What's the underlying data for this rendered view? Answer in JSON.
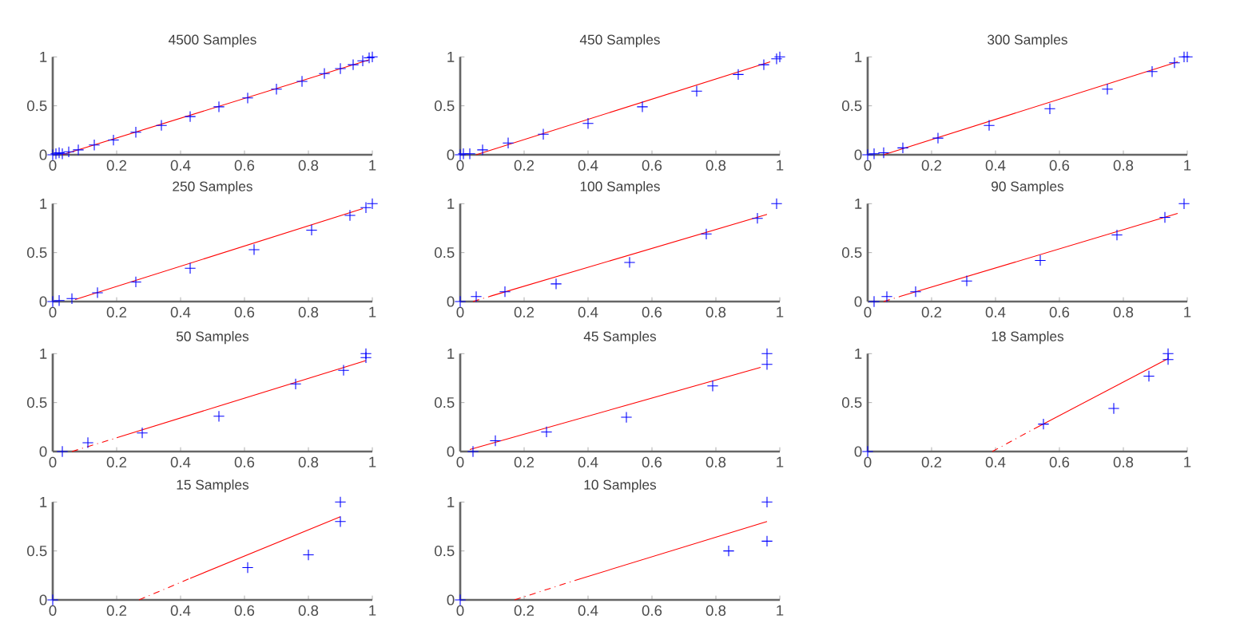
{
  "chart_data": [
    {
      "type": "scatter",
      "title": "4500 Samples",
      "xlim": [
        0,
        1
      ],
      "ylim": [
        0,
        1
      ],
      "xticks": [
        0,
        0.2,
        0.4,
        0.6,
        0.8,
        1
      ],
      "yticks": [
        0,
        0.5,
        1
      ],
      "series": [
        {
          "type": "scatter",
          "marker": "cross",
          "color": "#0000ff",
          "x": [
            0,
            0.01,
            0.02,
            0.03,
            0.05,
            0.08,
            0.13,
            0.19,
            0.26,
            0.34,
            0.43,
            0.52,
            0.61,
            0.7,
            0.78,
            0.85,
            0.9,
            0.94,
            0.97,
            0.99,
            1
          ],
          "values": [
            0,
            0.01,
            0.02,
            0.01,
            0.03,
            0.05,
            0.1,
            0.15,
            0.23,
            0.3,
            0.39,
            0.49,
            0.58,
            0.67,
            0.75,
            0.83,
            0.88,
            0.92,
            0.96,
            0.99,
            1
          ]
        },
        {
          "type": "line",
          "line_style": "solid",
          "color": "#ff0000",
          "x": [
            0.03,
            0.99
          ],
          "values": [
            0,
            0.97
          ]
        }
      ]
    },
    {
      "type": "scatter",
      "title": "450 Samples",
      "xlim": [
        0,
        1
      ],
      "ylim": [
        0,
        1
      ],
      "xticks": [
        0,
        0.2,
        0.4,
        0.6,
        0.8,
        1
      ],
      "yticks": [
        0,
        0.5,
        1
      ],
      "series": [
        {
          "type": "scatter",
          "marker": "cross",
          "color": "#0000ff",
          "x": [
            0,
            0.01,
            0.03,
            0.07,
            0.15,
            0.26,
            0.4,
            0.57,
            0.74,
            0.87,
            0.95,
            0.99,
            1
          ],
          "values": [
            0,
            0.01,
            0.01,
            0.05,
            0.12,
            0.21,
            0.32,
            0.49,
            0.65,
            0.82,
            0.92,
            0.98,
            1
          ]
        },
        {
          "type": "line",
          "line_style": "solid",
          "color": "#ff0000",
          "x": [
            0.05,
            0.97
          ],
          "values": [
            0,
            0.95
          ]
        }
      ]
    },
    {
      "type": "scatter",
      "title": "300 Samples",
      "xlim": [
        0,
        1
      ],
      "ylim": [
        0,
        1
      ],
      "xticks": [
        0,
        0.2,
        0.4,
        0.6,
        0.8,
        1
      ],
      "yticks": [
        0,
        0.5,
        1
      ],
      "series": [
        {
          "type": "scatter",
          "marker": "cross",
          "color": "#0000ff",
          "x": [
            0,
            0.02,
            0.05,
            0.11,
            0.22,
            0.38,
            0.57,
            0.75,
            0.89,
            0.96,
            0.99,
            1
          ],
          "values": [
            0,
            0.01,
            0.02,
            0.07,
            0.17,
            0.3,
            0.47,
            0.67,
            0.85,
            0.94,
            1,
            1
          ]
        },
        {
          "type": "line",
          "line_style": "solid",
          "color": "#ff0000",
          "x": [
            0.05,
            0.97
          ],
          "values": [
            0,
            0.95
          ]
        }
      ]
    },
    {
      "type": "scatter",
      "title": "250 Samples",
      "xlim": [
        0,
        1
      ],
      "ylim": [
        0,
        1
      ],
      "xticks": [
        0,
        0.2,
        0.4,
        0.6,
        0.8,
        1
      ],
      "yticks": [
        0,
        0.5,
        1
      ],
      "series": [
        {
          "type": "scatter",
          "marker": "cross",
          "color": "#0000ff",
          "x": [
            0,
            0.02,
            0.06,
            0.14,
            0.26,
            0.43,
            0.63,
            0.81,
            0.93,
            0.98,
            1
          ],
          "values": [
            0,
            0.01,
            0.03,
            0.09,
            0.2,
            0.34,
            0.53,
            0.73,
            0.88,
            0.96,
            1
          ]
        },
        {
          "type": "line",
          "line_style": "solid",
          "color": "#ff0000",
          "x": [
            0.07,
            0.97
          ],
          "values": [
            0.02,
            0.95
          ]
        }
      ]
    },
    {
      "type": "scatter",
      "title": "100 Samples",
      "xlim": [
        0,
        1
      ],
      "ylim": [
        0,
        1
      ],
      "xticks": [
        0,
        0.2,
        0.4,
        0.6,
        0.8,
        1
      ],
      "yticks": [
        0,
        0.5,
        1
      ],
      "series": [
        {
          "type": "scatter",
          "marker": "cross",
          "color": "#0000ff",
          "x": [
            0,
            0.05,
            0.14,
            0.3,
            0.53,
            0.77,
            0.93,
            0.99
          ],
          "values": [
            0,
            0.05,
            0.1,
            0.18,
            0.4,
            0.69,
            0.85,
            1
          ]
        },
        {
          "type": "line",
          "line_style": "dashed",
          "color": "#ff0000",
          "x": [
            0.04,
            0.1
          ],
          "values": [
            0,
            0.06
          ]
        },
        {
          "type": "line",
          "line_style": "solid",
          "color": "#ff0000",
          "x": [
            0.1,
            0.96
          ],
          "values": [
            0.06,
            0.89
          ]
        }
      ]
    },
    {
      "type": "scatter",
      "title": "90 Samples",
      "xlim": [
        0,
        1
      ],
      "ylim": [
        0,
        1
      ],
      "xticks": [
        0,
        0.2,
        0.4,
        0.6,
        0.8,
        1
      ],
      "yticks": [
        0,
        0.5,
        1
      ],
      "series": [
        {
          "type": "scatter",
          "marker": "cross",
          "color": "#0000ff",
          "x": [
            0.02,
            0.06,
            0.15,
            0.31,
            0.54,
            0.78,
            0.93,
            0.99
          ],
          "values": [
            0,
            0.05,
            0.1,
            0.21,
            0.42,
            0.68,
            0.86,
            1
          ]
        },
        {
          "type": "line",
          "line_style": "dashed",
          "color": "#ff0000",
          "x": [
            0.05,
            0.1
          ],
          "values": [
            0,
            0.05
          ]
        },
        {
          "type": "line",
          "line_style": "solid",
          "color": "#ff0000",
          "x": [
            0.1,
            0.97
          ],
          "values": [
            0.05,
            0.9
          ]
        }
      ]
    },
    {
      "type": "scatter",
      "title": "50 Samples",
      "xlim": [
        0,
        1
      ],
      "ylim": [
        0,
        1
      ],
      "xticks": [
        0,
        0.2,
        0.4,
        0.6,
        0.8,
        1
      ],
      "yticks": [
        0,
        0.5,
        1
      ],
      "series": [
        {
          "type": "scatter",
          "marker": "cross",
          "color": "#0000ff",
          "x": [
            0.03,
            0.11,
            0.28,
            0.52,
            0.76,
            0.91,
            0.98,
            0.98
          ],
          "values": [
            0,
            0.09,
            0.19,
            0.36,
            0.69,
            0.83,
            0.96,
            1
          ]
        },
        {
          "type": "line",
          "line_style": "dashed",
          "color": "#ff0000",
          "x": [
            0.06,
            0.2
          ],
          "values": [
            0,
            0.14
          ]
        },
        {
          "type": "line",
          "line_style": "solid",
          "color": "#ff0000",
          "x": [
            0.2,
            0.98
          ],
          "values": [
            0.14,
            0.93
          ]
        }
      ]
    },
    {
      "type": "scatter",
      "title": "45 Samples",
      "xlim": [
        0,
        1
      ],
      "ylim": [
        0,
        1
      ],
      "xticks": [
        0,
        0.2,
        0.4,
        0.6,
        0.8,
        1
      ],
      "yticks": [
        0,
        0.5,
        1
      ],
      "series": [
        {
          "type": "scatter",
          "marker": "cross",
          "color": "#0000ff",
          "x": [
            0.04,
            0.11,
            0.27,
            0.52,
            0.79,
            0.96,
            0.96
          ],
          "values": [
            0,
            0.11,
            0.2,
            0.35,
            0.67,
            0.89,
            1
          ]
        },
        {
          "type": "line",
          "line_style": "solid",
          "color": "#ff0000",
          "x": [
            0.03,
            0.94
          ],
          "values": [
            0.02,
            0.86
          ]
        }
      ]
    },
    {
      "type": "scatter",
      "title": "18 Samples",
      "xlim": [
        0,
        1
      ],
      "ylim": [
        0,
        1
      ],
      "xticks": [
        0,
        0.2,
        0.4,
        0.6,
        0.8,
        1
      ],
      "yticks": [
        0,
        0.5,
        1
      ],
      "series": [
        {
          "type": "scatter",
          "marker": "cross",
          "color": "#0000ff",
          "x": [
            0,
            0.55,
            0.77,
            0.88,
            0.94,
            0.94
          ],
          "values": [
            0,
            0.28,
            0.44,
            0.77,
            0.94,
            1
          ]
        },
        {
          "type": "line",
          "line_style": "dashed",
          "color": "#ff0000",
          "x": [
            0.39,
            0.52
          ],
          "values": [
            0,
            0.23
          ]
        },
        {
          "type": "line",
          "line_style": "solid",
          "color": "#ff0000",
          "x": [
            0.52,
            0.94
          ],
          "values": [
            0.23,
            0.95
          ]
        }
      ]
    },
    {
      "type": "scatter",
      "title": "15 Samples",
      "xlim": [
        0,
        1
      ],
      "ylim": [
        0,
        1
      ],
      "xticks": [
        0,
        0.2,
        0.4,
        0.6,
        0.8,
        1
      ],
      "yticks": [
        0,
        0.5,
        1
      ],
      "series": [
        {
          "type": "scatter",
          "marker": "cross",
          "color": "#0000ff",
          "x": [
            0,
            0.61,
            0.8,
            0.9,
            0.9
          ],
          "values": [
            0,
            0.33,
            0.46,
            0.8,
            1
          ]
        },
        {
          "type": "line",
          "line_style": "dashed",
          "color": "#ff0000",
          "x": [
            0.27,
            0.43
          ],
          "values": [
            0,
            0.22
          ]
        },
        {
          "type": "line",
          "line_style": "solid",
          "color": "#ff0000",
          "x": [
            0.43,
            0.9
          ],
          "values": [
            0.22,
            0.85
          ]
        }
      ]
    },
    {
      "type": "scatter",
      "title": "10 Samples",
      "xlim": [
        0,
        1
      ],
      "ylim": [
        0,
        1
      ],
      "xticks": [
        0,
        0.2,
        0.4,
        0.6,
        0.8,
        1
      ],
      "yticks": [
        0,
        0.5,
        1
      ],
      "series": [
        {
          "type": "scatter",
          "marker": "cross",
          "color": "#0000ff",
          "x": [
            0,
            0.84,
            0.96,
            0.96
          ],
          "values": [
            0,
            0.5,
            0.6,
            1
          ]
        },
        {
          "type": "line",
          "line_style": "dashed",
          "color": "#ff0000",
          "x": [
            0.17,
            0.36
          ],
          "values": [
            0,
            0.2
          ]
        },
        {
          "type": "line",
          "line_style": "solid",
          "color": "#ff0000",
          "x": [
            0.36,
            0.96
          ],
          "values": [
            0.2,
            0.8
          ]
        }
      ]
    }
  ]
}
